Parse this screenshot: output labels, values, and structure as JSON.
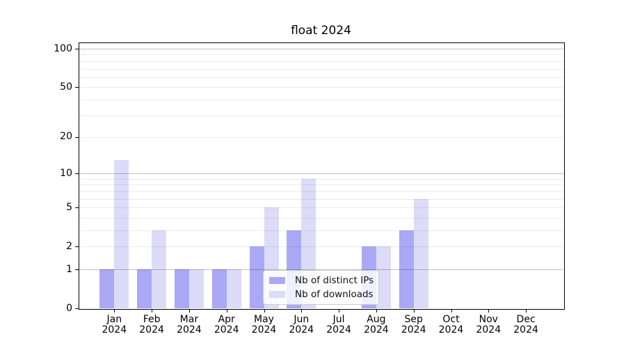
{
  "chart_data": {
    "type": "bar",
    "title": "float 2024",
    "categories": [
      "Jan 2024",
      "Feb 2024",
      "Mar 2024",
      "Apr 2024",
      "May 2024",
      "Jun 2024",
      "Jul 2024",
      "Aug 2024",
      "Sep 2024",
      "Oct 2024",
      "Nov 2024",
      "Dec 2024"
    ],
    "series": [
      {
        "name": "Nb of distinct IPs",
        "color": "#a9a9f5",
        "values": [
          1,
          1,
          1,
          1,
          2,
          3,
          0,
          2,
          3,
          0,
          0,
          0
        ]
      },
      {
        "name": "Nb of downloads",
        "color": "#dcdcf9",
        "values": [
          13,
          3,
          1,
          1,
          5,
          9,
          0,
          2,
          6,
          0,
          0,
          0
        ]
      }
    ],
    "ylabel": "",
    "xlabel": "",
    "yscale": "log1p",
    "ylim": [
      0,
      112
    ],
    "yticks": [
      0,
      1,
      2,
      5,
      10,
      20,
      50,
      100
    ],
    "gridlines": {
      "major": [
        1,
        10,
        100
      ],
      "minor": [
        2,
        3,
        4,
        5,
        6,
        7,
        8,
        9,
        20,
        30,
        40,
        50,
        60,
        70,
        80,
        90
      ],
      "major_color": "rgba(0,0,0,0.24)",
      "minor_color": "rgba(0,0,0,0.08)"
    },
    "legend_position": "lower center",
    "axis_color": "#000000",
    "background_color": "#ffffff"
  }
}
